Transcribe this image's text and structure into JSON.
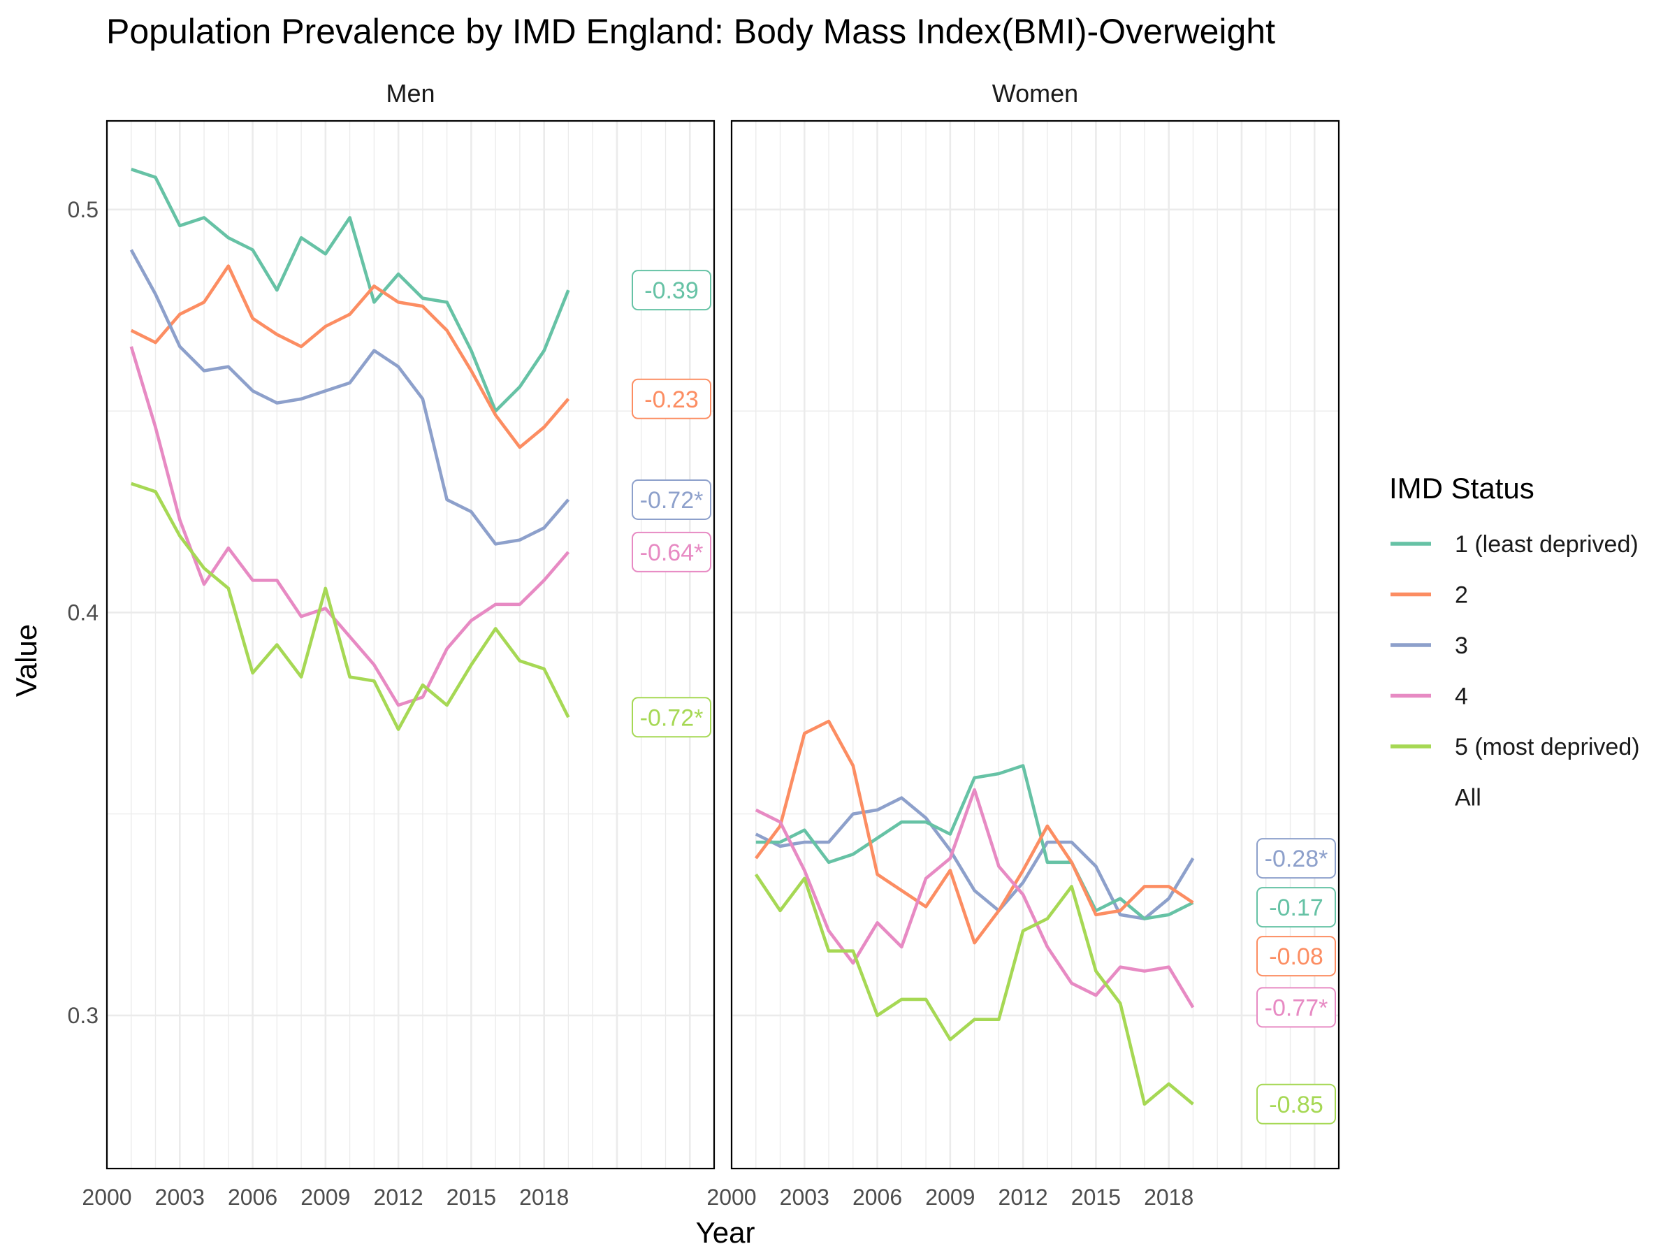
{
  "chart_data": {
    "type": "line",
    "title": "Population Prevalence by IMD England: Body Mass Index(BMI)-Overweight",
    "xlabel": "Year",
    "ylabel": "Value",
    "xlim": [
      2000,
      2025
    ],
    "ylim": [
      0.262,
      0.522
    ],
    "x_ticks": [
      "2000",
      "2003",
      "2006",
      "2009",
      "2012",
      "2015",
      "2018"
    ],
    "y_ticks": [
      "0.3",
      "0.4",
      "0.5"
    ],
    "legend": {
      "title": "IMD Status",
      "position": "right",
      "entries": [
        {
          "label": "1 (least deprived)",
          "color": "#66c2a5"
        },
        {
          "label": "2",
          "color": "#fc8d62"
        },
        {
          "label": "3",
          "color": "#8da0cb"
        },
        {
          "label": "4",
          "color": "#e78ac3"
        },
        {
          "label": "5 (most deprived)",
          "color": "#a6d854"
        },
        {
          "label": "All",
          "color": null
        }
      ]
    },
    "x": [
      2001,
      2002,
      2003,
      2004,
      2005,
      2006,
      2007,
      2008,
      2009,
      2010,
      2011,
      2012,
      2013,
      2014,
      2015,
      2016,
      2017,
      2018,
      2019
    ],
    "panels": [
      {
        "name": "Men",
        "series": [
          {
            "name": "1 (least deprived)",
            "color": "#66c2a5",
            "values": [
              0.51,
              0.508,
              0.496,
              0.498,
              0.493,
              0.49,
              0.48,
              0.493,
              0.489,
              0.498,
              0.477,
              0.484,
              0.478,
              0.477,
              0.465,
              0.45,
              0.456,
              0.465,
              0.48
            ],
            "label": "-0.39",
            "label_value": 0.48
          },
          {
            "name": "2",
            "color": "#fc8d62",
            "values": [
              0.47,
              0.467,
              0.474,
              0.477,
              0.486,
              0.473,
              0.469,
              0.466,
              0.471,
              0.474,
              0.481,
              0.477,
              0.476,
              0.47,
              0.46,
              0.449,
              0.441,
              0.446,
              0.453
            ],
            "label": "-0.23",
            "label_value": 0.453
          },
          {
            "name": "3",
            "color": "#8da0cb",
            "values": [
              0.49,
              0.479,
              0.466,
              0.46,
              0.461,
              0.455,
              0.452,
              0.453,
              0.455,
              0.457,
              0.465,
              0.461,
              0.453,
              0.428,
              0.425,
              0.417,
              0.418,
              0.421,
              0.428
            ],
            "label": "-0.72*",
            "label_value": 0.428
          },
          {
            "name": "4",
            "color": "#e78ac3",
            "values": [
              0.466,
              0.446,
              0.423,
              0.407,
              0.416,
              0.408,
              0.408,
              0.399,
              0.401,
              0.394,
              0.387,
              0.377,
              0.379,
              0.391,
              0.398,
              0.402,
              0.402,
              0.408,
              0.415
            ],
            "label": "-0.64*",
            "label_value": 0.415
          },
          {
            "name": "5 (most deprived)",
            "color": "#a6d854",
            "values": [
              0.432,
              0.43,
              0.419,
              0.411,
              0.406,
              0.385,
              0.392,
              0.384,
              0.406,
              0.384,
              0.383,
              0.371,
              0.382,
              0.377,
              0.387,
              0.396,
              0.388,
              0.386,
              0.374
            ],
            "label": "-0.72*",
            "label_value": 0.374
          }
        ]
      },
      {
        "name": "Women",
        "series": [
          {
            "name": "3",
            "color": "#8da0cb",
            "values": [
              0.345,
              0.342,
              0.343,
              0.343,
              0.35,
              0.351,
              0.354,
              0.349,
              0.341,
              0.331,
              0.326,
              0.333,
              0.343,
              0.343,
              0.337,
              0.325,
              0.324,
              0.329,
              0.339
            ],
            "label": "-0.28*",
            "label_value": 0.339
          },
          {
            "name": "1 (least deprived)",
            "color": "#66c2a5",
            "values": [
              0.343,
              0.343,
              0.346,
              0.338,
              0.34,
              0.344,
              0.348,
              0.348,
              0.345,
              0.359,
              0.36,
              0.362,
              0.338,
              0.338,
              0.326,
              0.329,
              0.324,
              0.325,
              0.328
            ],
            "label": "-0.17",
            "label_value": 0.328
          },
          {
            "name": "2",
            "color": "#fc8d62",
            "values": [
              0.339,
              0.347,
              0.37,
              0.373,
              0.362,
              0.335,
              0.331,
              0.327,
              0.336,
              0.318,
              0.326,
              0.336,
              0.347,
              0.338,
              0.325,
              0.326,
              0.332,
              0.332,
              0.328
            ],
            "label": "-0.08",
            "label_value": 0.328
          },
          {
            "name": "4",
            "color": "#e78ac3",
            "values": [
              0.351,
              0.348,
              0.336,
              0.321,
              0.313,
              0.323,
              0.317,
              0.334,
              0.339,
              0.356,
              0.337,
              0.33,
              0.317,
              0.308,
              0.305,
              0.312,
              0.311,
              0.312,
              0.302
            ],
            "label": "-0.77*",
            "label_value": 0.302
          },
          {
            "name": "5 (most deprived)",
            "color": "#a6d854",
            "values": [
              0.335,
              0.326,
              0.334,
              0.316,
              0.316,
              0.3,
              0.304,
              0.304,
              0.294,
              0.299,
              0.299,
              0.321,
              0.324,
              0.332,
              0.311,
              0.303,
              0.278,
              0.283,
              0.278
            ],
            "label": "-0.85",
            "label_value": 0.278
          }
        ]
      }
    ]
  }
}
